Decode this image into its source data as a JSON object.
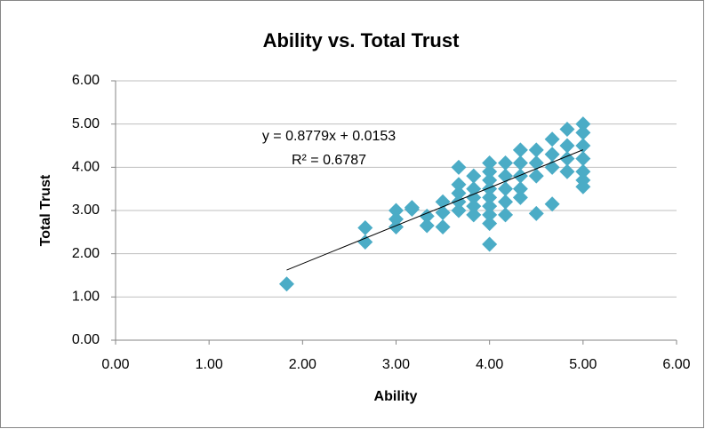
{
  "chart_data": {
    "type": "scatter",
    "title": "Ability vs. Total Trust",
    "x_label": "Ability",
    "y_label": "Total Trust",
    "color": "#4bacc6",
    "grid": true,
    "xlim": [
      0,
      6
    ],
    "ylim": [
      0,
      6
    ],
    "xticks": [
      {
        "value": 0,
        "label": "0.00"
      },
      {
        "value": 1,
        "label": "1.00"
      },
      {
        "value": 2,
        "label": "2.00"
      },
      {
        "value": 3,
        "label": "3.00"
      },
      {
        "value": 4,
        "label": "4.00"
      },
      {
        "value": 5,
        "label": "5.00"
      },
      {
        "value": 6,
        "label": "6.00"
      }
    ],
    "yticks": [
      {
        "value": 0,
        "label": "0.00"
      },
      {
        "value": 1,
        "label": "1.00"
      },
      {
        "value": 2,
        "label": "2.00"
      },
      {
        "value": 3,
        "label": "3.00"
      },
      {
        "value": 4,
        "label": "4.00"
      },
      {
        "value": 5,
        "label": "5.00"
      },
      {
        "value": 6,
        "label": "6.00"
      }
    ],
    "x": [
      1.83,
      2.67,
      2.67,
      3.0,
      3.0,
      3.0,
      3.17,
      3.17,
      3.33,
      3.33,
      3.5,
      3.5,
      3.5,
      3.67,
      3.67,
      3.67,
      3.67,
      3.67,
      3.83,
      3.83,
      3.83,
      3.83,
      3.83,
      4.0,
      4.0,
      4.0,
      4.0,
      4.0,
      4.0,
      4.0,
      4.0,
      4.0,
      4.17,
      4.17,
      4.17,
      4.17,
      4.17,
      4.33,
      4.33,
      4.33,
      4.33,
      4.33,
      4.5,
      4.5,
      4.5,
      4.5,
      4.67,
      4.67,
      4.67,
      4.67,
      4.83,
      4.83,
      4.83,
      4.83,
      5.0,
      5.0,
      5.0,
      5.0,
      5.0,
      5.0,
      5.0
    ],
    "values": [
      1.3,
      2.6,
      2.27,
      3.0,
      2.8,
      2.62,
      3.07,
      3.03,
      2.87,
      2.65,
      3.2,
      2.95,
      2.62,
      4.0,
      3.6,
      3.4,
      3.2,
      3.0,
      3.8,
      3.5,
      3.3,
      3.1,
      2.9,
      4.1,
      3.9,
      3.7,
      3.5,
      3.3,
      3.1,
      2.9,
      2.7,
      2.22,
      4.1,
      3.8,
      3.5,
      3.2,
      2.9,
      4.4,
      4.1,
      3.8,
      3.5,
      3.3,
      4.4,
      4.1,
      3.8,
      2.93,
      4.65,
      4.3,
      4.0,
      3.15,
      4.88,
      4.5,
      4.2,
      3.9,
      5.0,
      4.8,
      4.5,
      4.2,
      3.9,
      3.7,
      3.55
    ],
    "trendline": {
      "slope": 0.8779,
      "intercept": 0.0153,
      "equation": "y = 0.8779x + 0.0153",
      "r_squared": "R² = 0.6787"
    }
  }
}
